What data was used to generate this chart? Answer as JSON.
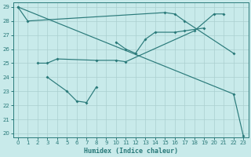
{
  "xlabel": "Humidex (Indice chaleur)",
  "background_color": "#c8eaea",
  "grid_color": "#aacfcf",
  "line_color": "#2a7a7a",
  "xlim": [
    -0.5,
    23.5
  ],
  "ylim": [
    19.7,
    29.3
  ],
  "xticks": [
    0,
    1,
    2,
    3,
    4,
    5,
    6,
    7,
    8,
    9,
    10,
    11,
    12,
    13,
    14,
    15,
    16,
    17,
    18,
    19,
    20,
    21,
    22,
    23
  ],
  "yticks": [
    20,
    21,
    22,
    23,
    24,
    25,
    26,
    27,
    28,
    29
  ],
  "series": [
    {
      "x": [
        0,
        1,
        15,
        16,
        17,
        22
      ],
      "y": [
        29,
        28,
        28.6,
        28.5,
        28.0,
        25.7
      ]
    },
    {
      "x": [
        2,
        3,
        4,
        8,
        10,
        11,
        18,
        20,
        21
      ],
      "y": [
        25.0,
        25.0,
        25.3,
        25.2,
        25.2,
        25.1,
        27.3,
        28.5,
        28.5
      ]
    },
    {
      "x": [
        3,
        5,
        6,
        7,
        8
      ],
      "y": [
        24.0,
        23.0,
        22.3,
        22.2,
        23.3
      ]
    },
    {
      "x": [
        10,
        11,
        12,
        13,
        14,
        16,
        17,
        19
      ],
      "y": [
        26.5,
        26.0,
        25.7,
        26.7,
        27.2,
        27.2,
        27.3,
        27.5
      ]
    },
    {
      "x": [
        0,
        22,
        23
      ],
      "y": [
        29,
        22.8,
        19.8
      ]
    }
  ]
}
